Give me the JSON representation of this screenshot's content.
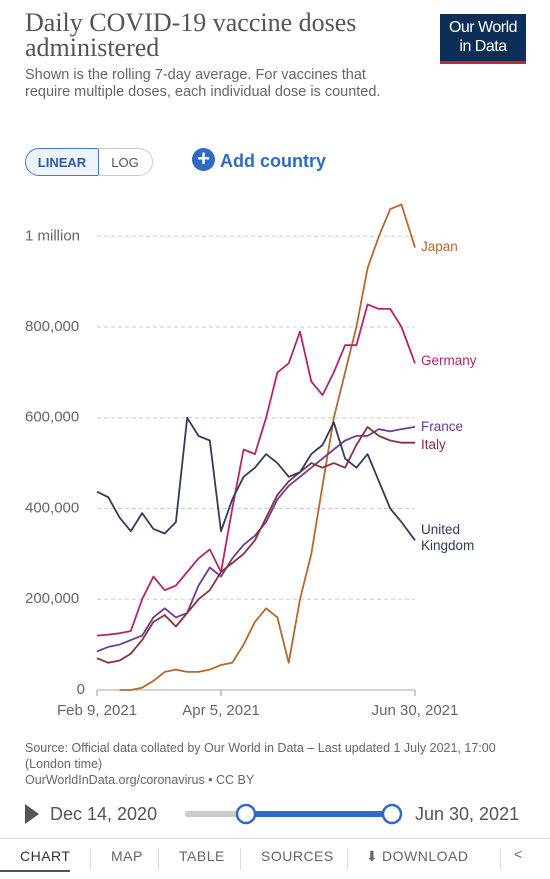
{
  "logo": [
    "Our World",
    "in Data"
  ],
  "controls": {
    "linear": "LINEAR",
    "log": "LOG",
    "add_country": "Add country"
  },
  "chart_data": {
    "type": "line",
    "title": "Daily COVID-19 vaccine doses administered",
    "subtitle": "Shown is the rolling 7-day average. For vaccines that require multiple doses, each individual dose is counted.",
    "x": [
      "2021-02-09",
      "2021-02-14",
      "2021-02-19",
      "2021-02-24",
      "2021-03-01",
      "2021-03-06",
      "2021-03-11",
      "2021-03-16",
      "2021-03-21",
      "2021-03-26",
      "2021-03-31",
      "2021-04-05",
      "2021-04-10",
      "2021-04-15",
      "2021-04-20",
      "2021-04-25",
      "2021-04-30",
      "2021-05-05",
      "2021-05-10",
      "2021-05-15",
      "2021-05-20",
      "2021-05-25",
      "2021-05-30",
      "2021-06-04",
      "2021-06-09",
      "2021-06-14",
      "2021-06-19",
      "2021-06-24",
      "2021-06-30"
    ],
    "xlim": [
      "2021-02-09",
      "2021-06-30"
    ],
    "xticks": [
      {
        "value": "2021-02-09",
        "label": "Feb 9, 2021"
      },
      {
        "value": "2021-04-05",
        "label": "Apr 5, 2021"
      },
      {
        "value": "2021-06-30",
        "label": "Jun 30, 2021"
      }
    ],
    "ylim": [
      0,
      1080000
    ],
    "yticks": [
      0,
      {
        "value": 200000,
        "label": "200,000"
      },
      {
        "value": 400000,
        "label": "400,000"
      },
      {
        "value": 600000,
        "label": "600,000"
      },
      {
        "value": 800000,
        "label": "800,000"
      },
      {
        "value": 1000000,
        "label": "1 million"
      }
    ],
    "grid": true,
    "series": [
      {
        "name": "Japan",
        "color": "#b5692a",
        "values": [
          null,
          null,
          0,
          0,
          5000,
          20000,
          40000,
          45000,
          40000,
          40000,
          45000,
          55000,
          60000,
          100000,
          150000,
          180000,
          160000,
          60000,
          200000,
          300000,
          450000,
          600000,
          700000,
          800000,
          930000,
          1000000,
          1060000,
          1070000,
          975000
        ]
      },
      {
        "name": "Germany",
        "color": "#b3246e",
        "values": [
          120000,
          122000,
          125000,
          130000,
          200000,
          250000,
          220000,
          230000,
          260000,
          290000,
          310000,
          260000,
          400000,
          530000,
          520000,
          600000,
          700000,
          720000,
          790000,
          680000,
          650000,
          700000,
          760000,
          760000,
          850000,
          840000,
          840000,
          800000,
          720000
        ]
      },
      {
        "name": "France",
        "color": "#6b3d93",
        "values": [
          85000,
          95000,
          100000,
          110000,
          120000,
          160000,
          180000,
          160000,
          170000,
          230000,
          270000,
          250000,
          290000,
          320000,
          340000,
          370000,
          420000,
          450000,
          470000,
          490000,
          510000,
          530000,
          550000,
          560000,
          560000,
          575000,
          570000,
          575000,
          580000
        ]
      },
      {
        "name": "Italy",
        "color": "#873139",
        "values": [
          70000,
          60000,
          65000,
          80000,
          110000,
          150000,
          165000,
          140000,
          170000,
          200000,
          220000,
          260000,
          280000,
          300000,
          330000,
          380000,
          430000,
          460000,
          480000,
          500000,
          490000,
          500000,
          490000,
          540000,
          580000,
          560000,
          550000,
          545000,
          545000
        ]
      },
      {
        "name": "United Kingdom",
        "color": "#333b58",
        "values": [
          437000,
          425000,
          380000,
          350000,
          390000,
          355000,
          345000,
          370000,
          600000,
          560000,
          550000,
          350000,
          420000,
          470000,
          490000,
          520000,
          500000,
          470000,
          480000,
          520000,
          540000,
          590000,
          510000,
          490000,
          520000,
          460000,
          400000,
          370000,
          330000
        ]
      }
    ],
    "source": "Source: Official data collated by Our World in Data – Last updated 1 July 2021, 17:00 (London time)",
    "url": "OurWorldInData.org/coronavirus • CC BY"
  },
  "timeline": {
    "start": "Dec 14, 2020",
    "end": "Jun 30, 2021"
  },
  "tabs": [
    "CHART",
    "MAP",
    "TABLE",
    "SOURCES",
    "DOWNLOAD"
  ]
}
